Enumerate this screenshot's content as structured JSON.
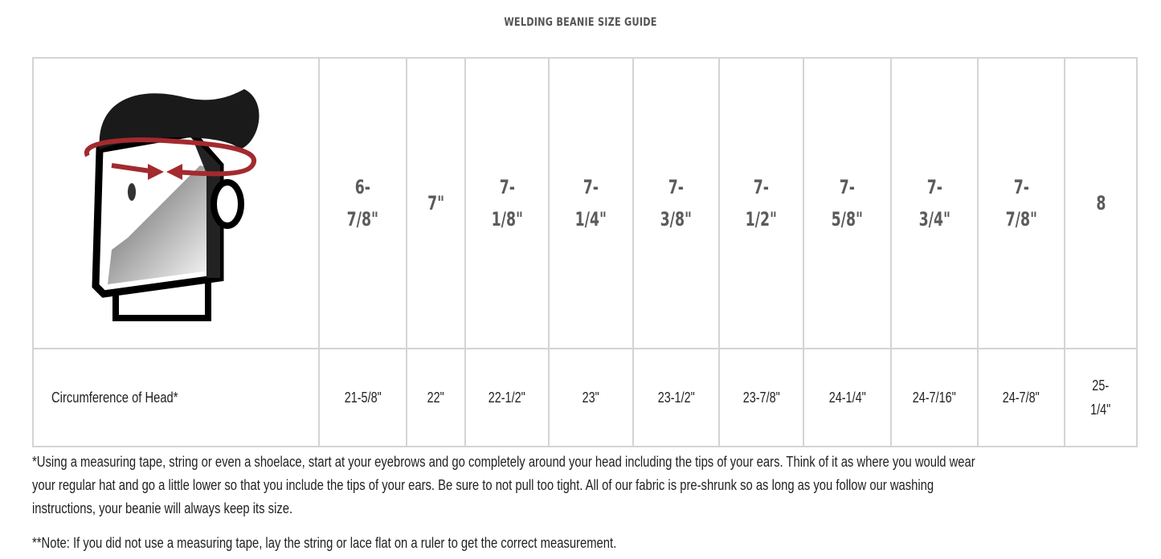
{
  "title": "WELDING BEANIE SIZE GUIDE",
  "table": {
    "image_icon": "head-measurement-illustration",
    "sizes": [
      "6-\n7/8\"",
      "7\"",
      "7-\n1/8\"",
      "7-\n1/4\"",
      "7-\n3/8\"",
      "7-\n1/2\"",
      "7-\n5/8\"",
      "7-\n3/4\"",
      "7-\n7/8\"",
      "8"
    ],
    "row_label": "Circumference of Head*",
    "circumferences": [
      "21-5/8\"",
      "22\"",
      "22-1/2\"",
      "23\"",
      "23-1/2\"",
      "23-7/8\"",
      "24-1/4\"",
      "24-7/16\"",
      "24-7/8\"",
      "25-\n1/4\""
    ]
  },
  "notes": {
    "measure": "*Using a measuring tape, string or even a shoelace, start at your eyebrows and go completely around your head including the tips of your ears. Think of it as where you would wear your regular hat and go a little lower so that you include the tips of your ears. Be sure to not pull too tight. All of our fabric is pre-shrunk so as long as you follow our washing instructions, your beanie will always keep its size.",
    "ruler": "**Note: If you did not use a measuring tape, lay the string or lace flat on a ruler to get the correct measurement."
  },
  "colors": {
    "arrow": "#a32a2e",
    "header_text": "#5b5b5b",
    "border": "#d4d4d4"
  }
}
